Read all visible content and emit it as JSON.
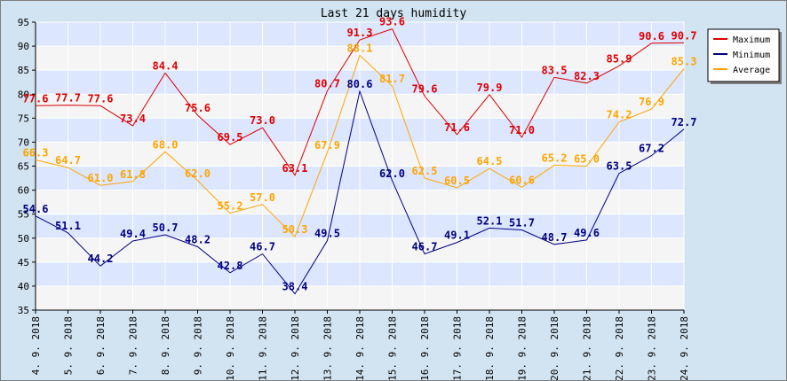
{
  "chart_data": {
    "type": "line",
    "title": "Last 21 days humidity",
    "xlabel": "",
    "ylabel": "",
    "categories": [
      "4. 9. 2018",
      "5. 9. 2018",
      "6. 9. 2018",
      "7. 9. 2018",
      "8. 9. 2018",
      "9. 9. 2018",
      "10. 9. 2018",
      "11. 9. 2018",
      "12. 9. 2018",
      "13. 9. 2018",
      "14. 9. 2018",
      "15. 9. 2018",
      "16. 9. 2018",
      "17. 9. 2018",
      "18. 9. 2018",
      "19. 9. 2018",
      "20. 9. 2018",
      "21. 9. 2018",
      "22. 9. 2018",
      "23. 9. 2018",
      "24. 9. 2018"
    ],
    "ylim": [
      35,
      95
    ],
    "yticks": [
      35,
      40,
      45,
      50,
      55,
      60,
      65,
      70,
      75,
      80,
      85,
      90,
      95
    ],
    "grid": true,
    "legend_position": "top-right",
    "series": [
      {
        "name": "Maximum",
        "color": "#e00000",
        "values": [
          77.6,
          77.7,
          77.6,
          73.4,
          84.4,
          75.6,
          69.5,
          73.0,
          63.1,
          80.7,
          91.3,
          93.6,
          79.6,
          71.6,
          79.9,
          71.0,
          83.5,
          82.3,
          85.9,
          90.6,
          90.7
        ]
      },
      {
        "name": "Minimum",
        "color": "#000080",
        "values": [
          54.6,
          51.1,
          44.2,
          49.4,
          50.7,
          48.2,
          42.8,
          46.7,
          38.4,
          49.5,
          80.6,
          62.0,
          46.7,
          49.1,
          52.1,
          51.7,
          48.7,
          49.6,
          63.5,
          67.2,
          72.7
        ]
      },
      {
        "name": "Average",
        "color": "#ffa500",
        "values": [
          66.3,
          64.7,
          61.0,
          61.8,
          68.0,
          62.0,
          55.2,
          57.0,
          50.3,
          67.9,
          88.1,
          81.7,
          62.5,
          60.5,
          64.5,
          60.6,
          65.2,
          65.0,
          74.2,
          76.9,
          85.3
        ]
      }
    ]
  }
}
